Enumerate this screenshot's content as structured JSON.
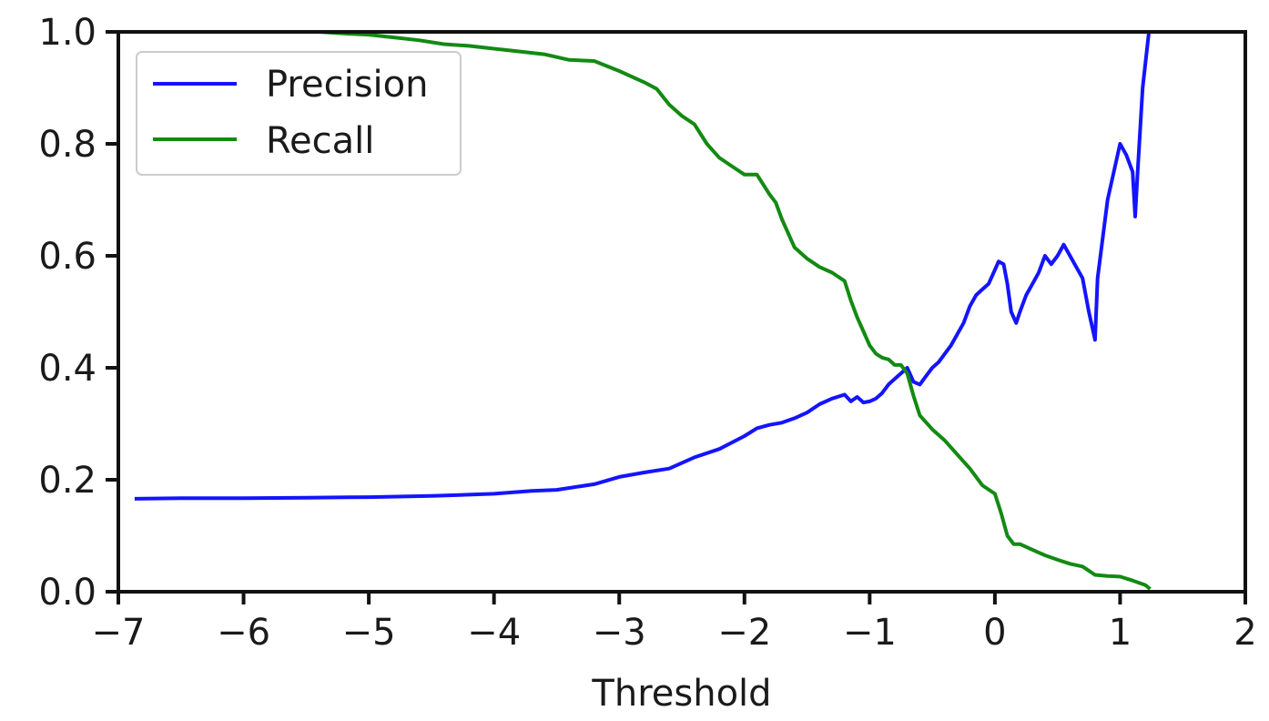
{
  "chart_data": {
    "type": "line",
    "title": "",
    "xlabel": "Threshold",
    "ylabel": "",
    "xlim": [
      -7,
      2
    ],
    "ylim": [
      0.0,
      1.0
    ],
    "xticks": [
      -7,
      -6,
      -5,
      -4,
      -3,
      -2,
      -1,
      0,
      1,
      2
    ],
    "xtick_labels": [
      "−7",
      "−6",
      "−5",
      "−4",
      "−3",
      "−2",
      "−1",
      "0",
      "1",
      "2"
    ],
    "yticks": [
      0.0,
      0.2,
      0.4,
      0.6,
      0.8,
      1.0
    ],
    "ytick_labels": [
      "0.0",
      "0.2",
      "0.4",
      "0.6",
      "0.8",
      "1.0"
    ],
    "grid": false,
    "legend_position": "upper-left",
    "series": [
      {
        "name": "Precision",
        "color": "#1414ff",
        "x": [
          -6.87,
          -6.5,
          -6.0,
          -5.5,
          -5.0,
          -4.5,
          -4.0,
          -3.7,
          -3.5,
          -3.2,
          -3.0,
          -2.8,
          -2.6,
          -2.4,
          -2.2,
          -2.0,
          -1.9,
          -1.8,
          -1.7,
          -1.6,
          -1.5,
          -1.4,
          -1.3,
          -1.2,
          -1.15,
          -1.1,
          -1.05,
          -1.0,
          -0.95,
          -0.9,
          -0.85,
          -0.8,
          -0.75,
          -0.7,
          -0.65,
          -0.6,
          -0.55,
          -0.5,
          -0.45,
          -0.4,
          -0.35,
          -0.3,
          -0.25,
          -0.2,
          -0.15,
          -0.1,
          -0.05,
          0.0,
          0.03,
          0.07,
          0.1,
          0.13,
          0.17,
          0.2,
          0.25,
          0.3,
          0.35,
          0.4,
          0.45,
          0.5,
          0.55,
          0.6,
          0.65,
          0.7,
          0.75,
          0.8,
          0.82,
          0.9,
          1.0,
          1.05,
          1.1,
          1.12,
          1.14,
          1.18,
          1.23
        ],
        "values": [
          0.166,
          0.167,
          0.167,
          0.168,
          0.169,
          0.171,
          0.175,
          0.18,
          0.182,
          0.192,
          0.205,
          0.213,
          0.22,
          0.24,
          0.255,
          0.278,
          0.292,
          0.298,
          0.302,
          0.31,
          0.32,
          0.335,
          0.345,
          0.352,
          0.34,
          0.348,
          0.338,
          0.34,
          0.345,
          0.355,
          0.37,
          0.38,
          0.39,
          0.4,
          0.375,
          0.37,
          0.385,
          0.4,
          0.41,
          0.425,
          0.44,
          0.46,
          0.48,
          0.51,
          0.53,
          0.54,
          0.55,
          0.575,
          0.59,
          0.585,
          0.55,
          0.5,
          0.48,
          0.5,
          0.53,
          0.55,
          0.57,
          0.6,
          0.585,
          0.6,
          0.62,
          0.6,
          0.58,
          0.56,
          0.5,
          0.45,
          0.56,
          0.7,
          0.8,
          0.78,
          0.75,
          0.67,
          0.75,
          0.9,
          1.0
        ]
      },
      {
        "name": "Recall",
        "color": "#138a13",
        "x": [
          -5.4,
          -5.2,
          -5.0,
          -4.8,
          -4.6,
          -4.4,
          -4.2,
          -4.0,
          -3.8,
          -3.6,
          -3.4,
          -3.2,
          -3.0,
          -2.8,
          -2.7,
          -2.6,
          -2.5,
          -2.4,
          -2.3,
          -2.2,
          -2.1,
          -2.0,
          -1.9,
          -1.8,
          -1.75,
          -1.7,
          -1.6,
          -1.5,
          -1.4,
          -1.3,
          -1.2,
          -1.15,
          -1.1,
          -1.05,
          -1.0,
          -0.95,
          -0.9,
          -0.85,
          -0.8,
          -0.75,
          -0.7,
          -0.65,
          -0.6,
          -0.5,
          -0.4,
          -0.3,
          -0.2,
          -0.1,
          0.0,
          0.05,
          0.1,
          0.15,
          0.2,
          0.3,
          0.4,
          0.5,
          0.6,
          0.7,
          0.8,
          0.9,
          1.0,
          1.1,
          1.2,
          1.24
        ],
        "values": [
          1.0,
          0.997,
          0.995,
          0.99,
          0.985,
          0.978,
          0.975,
          0.97,
          0.965,
          0.96,
          0.95,
          0.948,
          0.93,
          0.91,
          0.898,
          0.87,
          0.85,
          0.835,
          0.8,
          0.775,
          0.76,
          0.745,
          0.745,
          0.71,
          0.695,
          0.665,
          0.615,
          0.595,
          0.58,
          0.57,
          0.555,
          0.52,
          0.49,
          0.465,
          0.44,
          0.425,
          0.418,
          0.415,
          0.405,
          0.405,
          0.39,
          0.35,
          0.315,
          0.29,
          0.27,
          0.245,
          0.22,
          0.19,
          0.175,
          0.14,
          0.1,
          0.085,
          0.085,
          0.075,
          0.065,
          0.057,
          0.05,
          0.045,
          0.03,
          0.028,
          0.027,
          0.02,
          0.012,
          0.005
        ]
      }
    ]
  }
}
